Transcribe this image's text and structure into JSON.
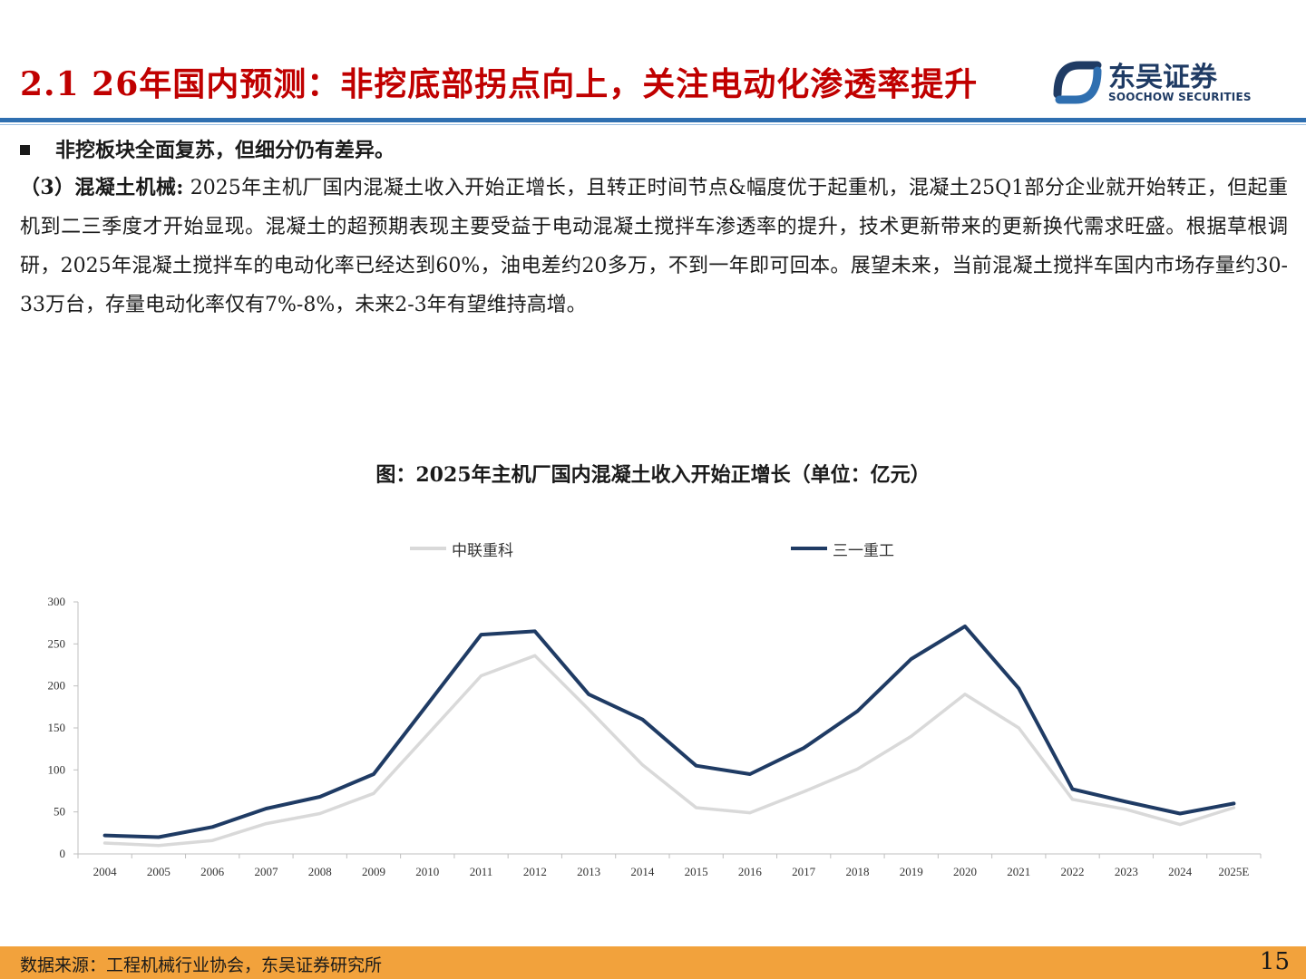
{
  "header": {
    "title": "2.1 26年国内预测：非挖底部拐点向上，关注电动化渗透率提升",
    "logo_cn": "东吴证券",
    "logo_en": "SOOCHOW SECURITIES",
    "accent_color": "#c00000",
    "rule_color": "#2f6fb0"
  },
  "bullet": {
    "text": "非挖板块全面复苏，但细分仍有差异。"
  },
  "paragraph": {
    "lead": "（3）混凝土机械:",
    "body": " 2025年主机厂国内混凝土收入开始正增长，且转正时间节点&幅度优于起重机，混凝土25Q1部分企业就开始转正，但起重机到二三季度才开始显现。混凝土的超预期表现主要受益于电动混凝土搅拌车渗透率的提升，技术更新带来的更新换代需求旺盛。根据草根调研，2025年混凝土搅拌车的电动化率已经达到60%，油电差约20多万，不到一年即可回本。展望未来，当前混凝土搅拌车国内市场存量约30-33万台，存量电动化率仅有7%-8%，未来2-3年有望维持高增。"
  },
  "chart_data": {
    "type": "line",
    "title": "图：2025年主机厂国内混凝土收入开始正增长（单位：亿元）",
    "xlabel": "",
    "ylabel": "",
    "categories": [
      "2004",
      "2005",
      "2006",
      "2007",
      "2008",
      "2009",
      "2010",
      "2011",
      "2012",
      "2013",
      "2014",
      "2015",
      "2016",
      "2017",
      "2018",
      "2019",
      "2020",
      "2021",
      "2022",
      "2023",
      "2024",
      "2025E"
    ],
    "ylim": [
      0,
      300
    ],
    "yticks": [
      0,
      50,
      100,
      150,
      200,
      250,
      300
    ],
    "grid": false,
    "legend_position": "top",
    "series": [
      {
        "name": "中联重科",
        "color": "#d9d9d9",
        "values": [
          13,
          10,
          16,
          36,
          48,
          72,
          142,
          212,
          236,
          172,
          106,
          55,
          49,
          74,
          101,
          140,
          190,
          150,
          65,
          53,
          35,
          55
        ]
      },
      {
        "name": "三一重工",
        "color": "#1f3b64",
        "values": [
          22,
          20,
          32,
          54,
          68,
          95,
          178,
          261,
          265,
          190,
          160,
          105,
          95,
          126,
          170,
          232,
          271,
          197,
          77,
          62,
          48,
          60
        ]
      }
    ]
  },
  "footer": {
    "source": "数据来源：工程机械行业协会，东吴证券研究所",
    "page": "15",
    "bar_color": "#f2a23c"
  }
}
